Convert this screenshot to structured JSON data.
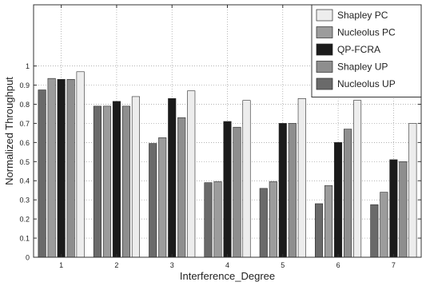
{
  "chart_data": {
    "type": "bar",
    "title": "",
    "xlabel": "Interference_Degree",
    "ylabel": "Normalized Throughput",
    "categories": [
      "1",
      "2",
      "3",
      "4",
      "5",
      "6",
      "7"
    ],
    "ylim": [
      0,
      1.32
    ],
    "yticks": [
      "0",
      "0.1",
      "0.2",
      "0.3",
      "0.4",
      "0.5",
      "0.6",
      "0.7",
      "0.8",
      "0.9",
      "1"
    ],
    "grid": "dotted",
    "legend_position": "top-right",
    "series": [
      {
        "name": "Nucleolus UP",
        "color": "#6a6a6a",
        "values": [
          0.875,
          0.79,
          0.595,
          0.39,
          0.36,
          0.28,
          0.275
        ]
      },
      {
        "name": "Nucleolus PC",
        "color": "#9c9c9c",
        "values": [
          0.935,
          0.79,
          0.625,
          0.395,
          0.395,
          0.375,
          0.34
        ]
      },
      {
        "name": "QP-FCRA",
        "color": "#1b1b1b",
        "values": [
          0.93,
          0.815,
          0.83,
          0.71,
          0.7,
          0.6,
          0.51
        ]
      },
      {
        "name": "Shapley UP",
        "color": "#8e8e8e",
        "values": [
          0.93,
          0.79,
          0.73,
          0.68,
          0.7,
          0.67,
          0.5
        ]
      },
      {
        "name": "Shapley PC",
        "color": "#ededed",
        "values": [
          0.97,
          0.84,
          0.87,
          0.82,
          0.83,
          0.82,
          0.7
        ]
      }
    ],
    "legend_order": [
      "Shapley PC",
      "Nucleolus PC",
      "QP-FCRA",
      "Shapley UP",
      "Nucleolus UP"
    ]
  }
}
